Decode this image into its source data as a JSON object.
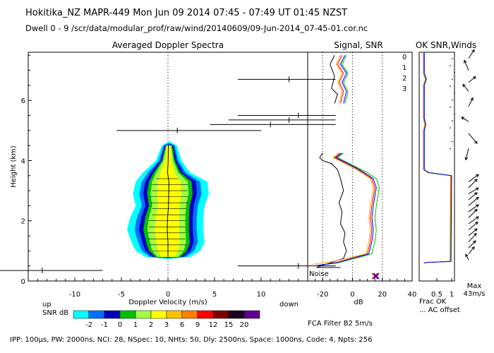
{
  "header": {
    "line1": "Hokitika_NZ   MAPR-449   Mon Jun 09 2014 07:45 - 07:49 UT 01:45 NZST",
    "line2": "Dwell   0 - 9    /scr/data/modular_prof/raw/wind/20140609/09-Jun-2014_07-45-01.cor.nc"
  },
  "footer": {
    "params": "IPP: 100µs,  PW: 2000ns,  NCI: 28,  NSpec: 10, NHts: 50,  Dly: 2500ns,  Space: 1000ns,  Code: 4,  Npts: 256",
    "filter": "FCA Filter B2   5m/s"
  },
  "colorbar": {
    "side_up": "up",
    "side_down": "down",
    "label": "SNR dB",
    "ticks": [
      "-2",
      "-1",
      "0",
      "1",
      "2",
      "3",
      "6",
      "9",
      "12",
      "15",
      "20"
    ],
    "colors": [
      "#00ffff",
      "#0070ff",
      "#0000c0",
      "#00c000",
      "#a0ff40",
      "#ffff00",
      "#ffc000",
      "#ff8000",
      "#ff0000",
      "#800000",
      "#200020",
      "#600090"
    ]
  },
  "chart_data": [
    {
      "type": "heatmap",
      "title": "Averaged Doppler Spectra",
      "xlabel": "Doppler Velocity (m/s)",
      "ylabel": "Height (km)",
      "xlim": [
        -15,
        15
      ],
      "ylim": [
        0,
        7.6
      ],
      "xticks": [
        "-10",
        "-5",
        "0",
        "5",
        "10"
      ],
      "yticks": [
        "0",
        "2",
        "4",
        "6"
      ],
      "spectrum_profile": [
        {
          "h": 0.8,
          "min": -1.3,
          "max": 1.3
        },
        {
          "h": 1.0,
          "min": -2.0,
          "max": 2.0
        },
        {
          "h": 1.3,
          "min": -2.3,
          "max": 2.3
        },
        {
          "h": 1.7,
          "min": -2.6,
          "max": 2.2
        },
        {
          "h": 2.1,
          "min": -2.4,
          "max": 2.2
        },
        {
          "h": 2.5,
          "min": -2.0,
          "max": 2.3
        },
        {
          "h": 2.9,
          "min": -2.2,
          "max": 2.6
        },
        {
          "h": 3.3,
          "min": -2.0,
          "max": 2.5
        },
        {
          "h": 3.6,
          "min": -1.5,
          "max": 1.3
        },
        {
          "h": 4.0,
          "min": -0.6,
          "max": 0.7
        },
        {
          "h": 4.5,
          "min": -0.2,
          "max": 0.4
        }
      ],
      "error_bars": [
        {
          "h": 0.35,
          "center": -13.5,
          "left": -19.0,
          "right": -7.0
        },
        {
          "h": 0.5,
          "center": 14.0,
          "left": 7.5,
          "right": 18.0
        },
        {
          "h": 5.0,
          "center": 1.0,
          "left": -5.5,
          "right": 10.0
        },
        {
          "h": 5.2,
          "center": 11.0,
          "left": 4.5,
          "right": 18.0
        },
        {
          "h": 5.35,
          "center": 13.0,
          "left": 6.5,
          "right": 18.0
        },
        {
          "h": 5.5,
          "center": 14.0,
          "left": 7.5,
          "right": 18.0
        },
        {
          "h": 6.7,
          "center": 13.0,
          "left": 7.5,
          "right": 18.0
        }
      ]
    },
    {
      "type": "line",
      "title": "Signal, SNR",
      "xlabel": "dB",
      "xlim": [
        -30,
        40
      ],
      "ylim": [
        0,
        7.6
      ],
      "xticks": [
        "-20",
        "0",
        "20",
        "40"
      ],
      "annotation": "Noise",
      "series": [
        {
          "name": "signal",
          "color": "#000000",
          "points": [
            [
              -24,
              0.45
            ],
            [
              -18,
              0.55
            ],
            [
              -6,
              0.75
            ],
            [
              -4,
              1.0
            ],
            [
              -6,
              1.3
            ],
            [
              -5,
              1.6
            ],
            [
              -8,
              1.9
            ],
            [
              -7,
              2.3
            ],
            [
              -9,
              2.6
            ],
            [
              -6,
              3.0
            ],
            [
              -8,
              3.4
            ],
            [
              -10,
              3.7
            ],
            [
              -14,
              3.9
            ],
            [
              -20,
              4.0
            ],
            [
              -22,
              4.1
            ],
            [
              -20,
              4.25
            ],
            [
              null,
              null
            ],
            [
              -12,
              5.9
            ],
            [
              -10,
              6.2
            ],
            [
              -14,
              6.4
            ],
            [
              -12,
              6.8
            ],
            [
              -15,
              7.2
            ],
            [
              -12,
              7.5
            ]
          ]
        },
        {
          "name": "0",
          "color": "#ff0000",
          "points": [
            [
              -26,
              0.5
            ],
            [
              -12,
              0.6
            ],
            [
              10,
              0.9
            ],
            [
              12,
              1.3
            ],
            [
              13,
              1.7
            ],
            [
              12,
              2.1
            ],
            [
              13,
              2.5
            ],
            [
              14,
              2.8
            ],
            [
              15,
              3.1
            ],
            [
              13,
              3.4
            ],
            [
              7,
              3.6
            ],
            [
              2,
              3.75
            ],
            [
              -4,
              3.9
            ],
            [
              -8,
              4.0
            ],
            [
              -12,
              4.1
            ],
            [
              -8,
              4.25
            ],
            [
              null,
              null
            ],
            [
              -8,
              5.9
            ],
            [
              -6,
              6.3
            ],
            [
              -9,
              6.6
            ],
            [
              -6,
              6.9
            ],
            [
              -10,
              7.2
            ],
            [
              -7,
              7.5
            ]
          ]
        },
        {
          "name": "1",
          "color": "#ffa500",
          "points": [
            [
              -27,
              0.55
            ],
            [
              -13,
              0.65
            ],
            [
              9,
              0.9
            ],
            [
              11,
              1.3
            ],
            [
              12,
              1.7
            ],
            [
              11,
              2.1
            ],
            [
              12,
              2.5
            ],
            [
              13,
              2.8
            ],
            [
              14,
              3.1
            ],
            [
              12,
              3.4
            ],
            [
              6,
              3.6
            ],
            [
              1,
              3.75
            ],
            [
              -5,
              3.9
            ],
            [
              -9,
              4.0
            ],
            [
              -13,
              4.1
            ],
            [
              -9,
              4.25
            ],
            [
              null,
              null
            ],
            [
              -9,
              5.9
            ],
            [
              -7,
              6.3
            ],
            [
              -10,
              6.6
            ],
            [
              -7,
              6.9
            ],
            [
              -11,
              7.2
            ],
            [
              -8,
              7.5
            ]
          ]
        },
        {
          "name": "2",
          "color": "#00c000",
          "points": [
            [
              -25,
              0.5
            ],
            [
              -10,
              0.6
            ],
            [
              13,
              0.9
            ],
            [
              15,
              1.3
            ],
            [
              16,
              1.7
            ],
            [
              15,
              2.1
            ],
            [
              16,
              2.5
            ],
            [
              17,
              2.8
            ],
            [
              18,
              3.1
            ],
            [
              16,
              3.4
            ],
            [
              10,
              3.6
            ],
            [
              4,
              3.75
            ],
            [
              -2,
              3.9
            ],
            [
              -6,
              4.0
            ],
            [
              -10,
              4.1
            ],
            [
              -6,
              4.25
            ],
            [
              null,
              null
            ],
            [
              -5,
              5.9
            ],
            [
              -3,
              6.3
            ],
            [
              -6,
              6.6
            ],
            [
              -3,
              6.9
            ],
            [
              -7,
              7.2
            ],
            [
              -4,
              7.5
            ]
          ]
        },
        {
          "name": "3",
          "color": "#0000ff",
          "points": [
            [
              -26,
              0.5
            ],
            [
              -11,
              0.6
            ],
            [
              11,
              0.9
            ],
            [
              13,
              1.3
            ],
            [
              14,
              1.7
            ],
            [
              13,
              2.1
            ],
            [
              14,
              2.5
            ],
            [
              15,
              2.8
            ],
            [
              16,
              3.1
            ],
            [
              14,
              3.4
            ],
            [
              8,
              3.6
            ],
            [
              3,
              3.75
            ],
            [
              -3,
              3.9
            ],
            [
              -7,
              4.0
            ],
            [
              -11,
              4.1
            ],
            [
              -7,
              4.25
            ],
            [
              null,
              null
            ],
            [
              -6,
              5.9
            ],
            [
              -4,
              6.3
            ],
            [
              -7,
              6.6
            ],
            [
              -4,
              6.9
            ],
            [
              -8,
              7.2
            ],
            [
              -5,
              7.5
            ]
          ]
        }
      ]
    },
    {
      "type": "line",
      "title": "OK SNR,Winds",
      "xlabel": "Frac OK",
      "x2label": "... AC offset",
      "xlim": [
        0,
        1
      ],
      "xticks": [
        "0.5",
        "1"
      ],
      "legend": [
        "0",
        "1",
        "2",
        "3"
      ],
      "legend_colors": [
        "#ff0000",
        "#ffa500",
        "#00c000",
        "#0000ff"
      ],
      "max_label": "Max",
      "max_value": "43m/s",
      "frac_ok": [
        [
          0.05,
          0.6
        ],
        [
          0.2,
          0.62
        ],
        [
          0.95,
          0.65
        ],
        [
          0.97,
          3.5
        ],
        [
          0.2,
          3.6
        ],
        [
          0.05,
          3.7
        ],
        [
          0.05,
          5.0
        ],
        [
          0.1,
          5.2
        ],
        [
          0.05,
          5.4
        ],
        [
          0.05,
          6.5
        ],
        [
          0.12,
          6.7
        ],
        [
          0.05,
          6.9
        ],
        [
          0.05,
          7.6
        ]
      ],
      "wind_arrows": [
        {
          "h": 7.4,
          "dx": 8,
          "dy": -12
        },
        {
          "h": 7.0,
          "dx": -6,
          "dy": -14
        },
        {
          "h": 6.6,
          "dx": 10,
          "dy": -8
        },
        {
          "h": 6.3,
          "dx": -8,
          "dy": -10
        },
        {
          "h": 5.8,
          "dx": 6,
          "dy": -12
        },
        {
          "h": 5.3,
          "dx": -10,
          "dy": -6
        },
        {
          "h": 4.9,
          "dx": 12,
          "dy": 14
        },
        {
          "h": 4.4,
          "dx": -4,
          "dy": 16
        },
        {
          "h": 3.3,
          "dx": 14,
          "dy": -10
        },
        {
          "h": 3.1,
          "dx": 12,
          "dy": -12
        },
        {
          "h": 2.9,
          "dx": 14,
          "dy": -8
        },
        {
          "h": 2.7,
          "dx": 12,
          "dy": -10
        },
        {
          "h": 2.5,
          "dx": 14,
          "dy": -12
        },
        {
          "h": 2.3,
          "dx": 14,
          "dy": -10
        },
        {
          "h": 2.1,
          "dx": 12,
          "dy": -12
        },
        {
          "h": 1.9,
          "dx": 14,
          "dy": -10
        },
        {
          "h": 1.7,
          "dx": 13,
          "dy": -11
        },
        {
          "h": 1.5,
          "dx": 12,
          "dy": -10
        },
        {
          "h": 1.3,
          "dx": 11,
          "dy": -12
        },
        {
          "h": 1.1,
          "dx": 10,
          "dy": -10
        },
        {
          "h": 0.9,
          "dx": 8,
          "dy": -10
        },
        {
          "h": 0.7,
          "dx": -4,
          "dy": -8
        }
      ]
    }
  ]
}
